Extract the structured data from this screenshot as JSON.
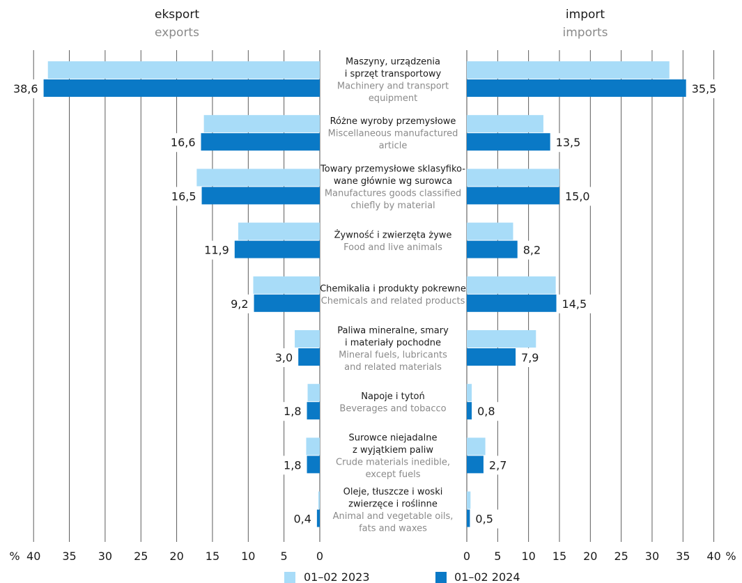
{
  "chart_data": {
    "type": "bar",
    "orientation": "horizontal",
    "layout": "butterfly",
    "unit": "%",
    "left_panel": {
      "title": "eksport",
      "subtitle": "exports"
    },
    "right_panel": {
      "title": "import",
      "subtitle": "imports"
    },
    "categories": [
      {
        "pl": [
          "Maszyny, urządzenia",
          "i sprzęt transportowy"
        ],
        "en": [
          "Machinery and transport",
          "equipment"
        ]
      },
      {
        "pl": [
          "Różne wyroby przemysłowe"
        ],
        "en": [
          "Miscellaneous manufactured",
          "article"
        ]
      },
      {
        "pl": [
          "Towary przemysłowe sklasyfiko-",
          "wane głównie wg surowca"
        ],
        "en": [
          "Manufactures goods classified",
          "chiefly by material"
        ]
      },
      {
        "pl": [
          "Żywność i zwierzęta żywe"
        ],
        "en": [
          "Food and live animals"
        ]
      },
      {
        "pl": [
          "Chemikalia i produkty pokrewne"
        ],
        "en": [
          "Chemicals and related products"
        ]
      },
      {
        "pl": [
          "Paliwa mineralne, smary",
          "i materiały pochodne"
        ],
        "en": [
          "Mineral fuels, lubricants",
          "and related materials"
        ]
      },
      {
        "pl": [
          "Napoje i tytoń"
        ],
        "en": [
          "Beverages and tobacco"
        ]
      },
      {
        "pl": [
          "Surowce niejadalne",
          "z wyjątkiem paliw"
        ],
        "en": [
          "Crude materials inedible,",
          "except fuels"
        ]
      },
      {
        "pl": [
          "Oleje, tłuszcze i woski",
          "zwierzęce i roślinne"
        ],
        "en": [
          "Animal and vegetable oils,",
          "fats and waxes"
        ]
      }
    ],
    "series": [
      {
        "name": "01–02 2023",
        "color": "#a8dcf8",
        "exports": [
          38.0,
          16.2,
          17.2,
          11.4,
          9.3,
          3.5,
          1.7,
          1.9,
          0.2
        ],
        "imports": [
          32.8,
          12.4,
          15.0,
          7.5,
          14.4,
          11.2,
          0.8,
          3.0,
          0.6
        ]
      },
      {
        "name": "01–02 2024",
        "color": "#0a79c6",
        "exports": [
          38.6,
          16.6,
          16.5,
          11.9,
          9.2,
          3.0,
          1.8,
          1.8,
          0.4
        ],
        "imports": [
          35.5,
          13.5,
          15.0,
          8.2,
          14.5,
          7.9,
          0.8,
          2.7,
          0.5
        ]
      }
    ],
    "data_labels": {
      "exports": [
        "38,6",
        "16,6",
        "16,5",
        "11,9",
        "9,2",
        "3,0",
        "1,8",
        "1,8",
        "0,4"
      ],
      "imports": [
        "35,5",
        "13,5",
        "15,0",
        "8,2",
        "14,5",
        "7,9",
        "0,8",
        "2,7",
        "0,5"
      ]
    },
    "export_ticks": [
      "40",
      "35",
      "30",
      "25",
      "20",
      "15",
      "10",
      "5",
      "0"
    ],
    "import_ticks": [
      "0",
      "5",
      "10",
      "15",
      "20",
      "25",
      "30",
      "35",
      "40"
    ],
    "export_tick_values": [
      40,
      35,
      30,
      25,
      20,
      15,
      10,
      5,
      0
    ],
    "import_tick_values": [
      0,
      5,
      10,
      15,
      20,
      25,
      30,
      35,
      40
    ],
    "axis_unit_label": "%",
    "xlim": [
      0,
      40
    ],
    "grid": true
  }
}
